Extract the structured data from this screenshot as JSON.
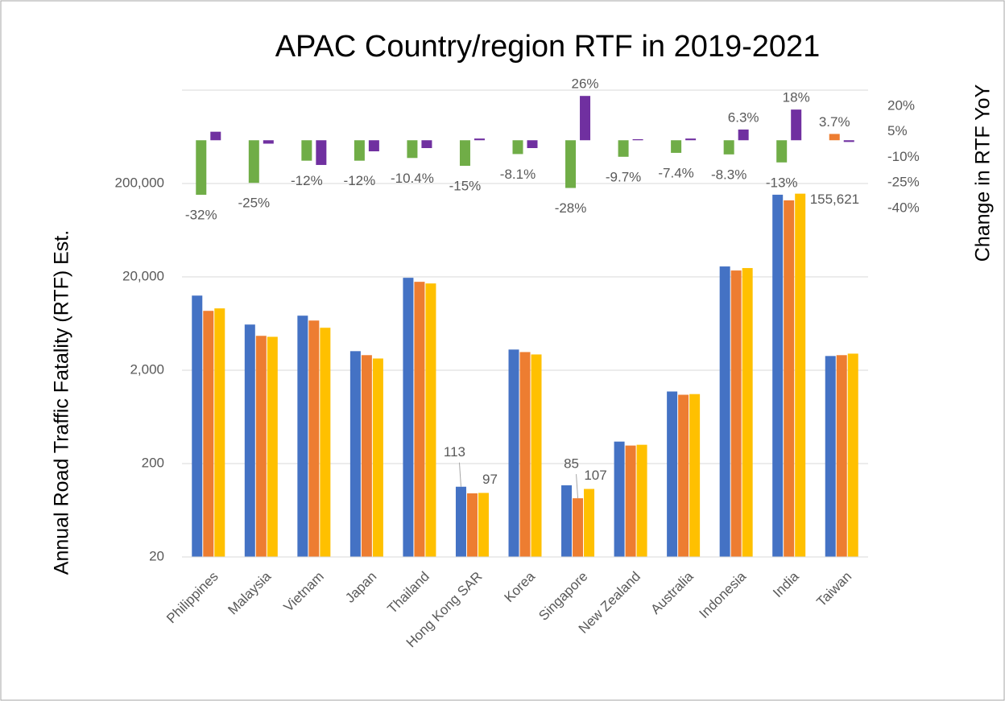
{
  "chart_data": {
    "type": "bar",
    "title": "APAC Country/region RTF in 2019-2021",
    "y_label": "Annual Road Traffic Fatality (RTF) Est.",
    "y2_label": "Change in RTF YoY",
    "categories": [
      "Philippines",
      "Malaysia",
      "Vietnam",
      "Japan",
      "Thailand",
      "Hong Kong SAR",
      "Korea",
      "Singapore",
      "New Zealand",
      "Australia",
      "Indonesia",
      "India",
      "Taiwan"
    ],
    "yscale": "log",
    "ylim": [
      20,
      2000000
    ],
    "yticks": [
      20,
      200,
      {
        "value": 2000,
        "label": "2,000"
      },
      {
        "value": 20000,
        "label": "20,000"
      },
      {
        "value": 200000,
        "label": "200,000"
      }
    ],
    "y2lim": [
      -244.5,
      29.4
    ],
    "y2ticks": [
      {
        "value": 20,
        "label": "20%"
      },
      {
        "value": 5,
        "label": "5%"
      },
      {
        "value": -10,
        "label": "-10%"
      },
      {
        "value": -25,
        "label": "-25%"
      },
      {
        "value": -40,
        "label": "-40%"
      }
    ],
    "grid": true,
    "series": [
      {
        "color": "#4472c4",
        "values": [
          12600,
          6170,
          7680,
          3200,
          19550,
          113,
          3330,
          117,
          344,
          1183,
          25850,
          151700,
          2840
        ],
        "value_labels": [
          null,
          null,
          null,
          null,
          null,
          "113",
          null,
          null,
          null,
          null,
          null,
          null,
          null
        ]
      },
      {
        "color": "#ed7d31",
        "values": [
          8650,
          4670,
          6810,
          2900,
          17700,
          96,
          3130,
          85,
          312,
          1092,
          23400,
          132000,
          2900
        ],
        "value_labels": [
          null,
          null,
          null,
          null,
          null,
          null,
          null,
          "85",
          null,
          null,
          null,
          null,
          null
        ]
      },
      {
        "color": "#ffc000",
        "values": [
          9190,
          4560,
          5700,
          2670,
          17000,
          97,
          2950,
          107,
          318,
          1110,
          24850,
          155621,
          3010
        ],
        "value_labels": [
          null,
          null,
          null,
          null,
          null,
          "97",
          null,
          "107",
          null,
          null,
          null,
          "155,621",
          null
        ]
      },
      {
        "color": "#70ad47",
        "axis": "y2",
        "colors": [
          "#70ad47",
          "#70ad47",
          "#70ad47",
          "#70ad47",
          "#70ad47",
          "#70ad47",
          "#70ad47",
          "#70ad47",
          "#70ad47",
          "#70ad47",
          "#70ad47",
          "#70ad47",
          "#ed7d31"
        ],
        "values": [
          -32,
          -25,
          -12,
          -12,
          -10.4,
          -15,
          -8.1,
          -28,
          -9.7,
          -7.4,
          -8.3,
          -13,
          3.7
        ],
        "value_labels": [
          "-32%",
          "-25%",
          "-12%",
          "-12%",
          "-10.4%",
          "-15%",
          "-8.1%",
          "-28%",
          "-9.7%",
          "-7.4%",
          "-8.3%",
          "-13%",
          "3.7%"
        ]
      },
      {
        "color": "#7030a0",
        "axis": "y2",
        "values": [
          5,
          -2,
          -14.5,
          -6.5,
          -4.6,
          1,
          -4.6,
          26,
          0.6,
          1,
          6.3,
          18,
          -1
        ],
        "value_labels": [
          null,
          null,
          null,
          null,
          null,
          null,
          null,
          "26%",
          null,
          null,
          "6.3%",
          "18%",
          null
        ]
      }
    ]
  }
}
